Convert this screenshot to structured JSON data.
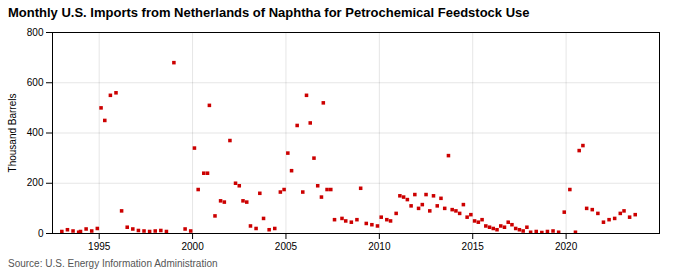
{
  "chart_data": {
    "type": "scatter",
    "title": "Monthly U.S. Imports from Netherlands of Naphtha for Petrochemical Feedstock Use",
    "ylabel": "Thousand Barrels",
    "source": "Source: U.S. Energy Information Administration",
    "color": "#cc0000",
    "marker": "square",
    "grid": true,
    "xlim": [
      1992.5,
      2025.0
    ],
    "ylim": [
      0,
      800
    ],
    "xticks": [
      1995,
      2000,
      2005,
      2010,
      2015,
      2020
    ],
    "yticks": [
      0,
      200,
      400,
      600,
      800
    ],
    "x": [
      1993.0,
      1993.3,
      1993.6,
      1993.9,
      1994.0,
      1994.3,
      1994.6,
      1994.9,
      1995.1,
      1995.3,
      1995.6,
      1995.9,
      1996.2,
      1996.5,
      1996.8,
      1997.1,
      1997.4,
      1997.7,
      1998.0,
      1998.3,
      1998.6,
      1999.0,
      1999.6,
      1999.9,
      2000.1,
      2000.3,
      2000.6,
      2000.8,
      2000.9,
      2001.2,
      2001.5,
      2001.7,
      2002.0,
      2002.3,
      2002.5,
      2002.7,
      2002.9,
      2003.1,
      2003.4,
      2003.6,
      2003.8,
      2004.1,
      2004.4,
      2004.7,
      2004.9,
      2005.1,
      2005.3,
      2005.6,
      2005.9,
      2006.1,
      2006.3,
      2006.5,
      2006.7,
      2006.9,
      2007.0,
      2007.2,
      2007.4,
      2007.6,
      2008.0,
      2008.2,
      2008.5,
      2008.8,
      2009.0,
      2009.3,
      2009.6,
      2009.9,
      2010.1,
      2010.4,
      2010.6,
      2010.9,
      2011.1,
      2011.3,
      2011.5,
      2011.7,
      2011.9,
      2012.1,
      2012.3,
      2012.5,
      2012.7,
      2012.9,
      2013.1,
      2013.3,
      2013.5,
      2013.7,
      2013.9,
      2014.1,
      2014.3,
      2014.5,
      2014.7,
      2014.9,
      2015.1,
      2015.3,
      2015.5,
      2015.7,
      2015.9,
      2016.1,
      2016.3,
      2016.5,
      2016.7,
      2016.9,
      2017.1,
      2017.3,
      2017.5,
      2017.7,
      2017.9,
      2018.1,
      2018.4,
      2018.7,
      2019.0,
      2019.3,
      2019.6,
      2019.9,
      2020.2,
      2020.5,
      2020.7,
      2020.9,
      2021.1,
      2021.4,
      2021.7,
      2022.0,
      2022.3,
      2022.6,
      2022.9,
      2023.1,
      2023.4,
      2023.7
    ],
    "values": [
      8,
      15,
      10,
      5,
      8,
      18,
      10,
      20,
      500,
      450,
      550,
      560,
      90,
      25,
      18,
      12,
      10,
      8,
      10,
      12,
      8,
      680,
      18,
      10,
      340,
      175,
      240,
      240,
      510,
      70,
      130,
      125,
      370,
      200,
      190,
      130,
      125,
      30,
      20,
      160,
      60,
      15,
      20,
      165,
      175,
      320,
      250,
      430,
      165,
      550,
      440,
      300,
      190,
      145,
      520,
      175,
      175,
      55,
      60,
      50,
      45,
      55,
      180,
      40,
      35,
      30,
      65,
      55,
      50,
      80,
      150,
      145,
      135,
      110,
      155,
      100,
      115,
      155,
      90,
      150,
      110,
      140,
      100,
      310,
      95,
      90,
      80,
      115,
      65,
      75,
      50,
      45,
      55,
      30,
      25,
      20,
      15,
      30,
      25,
      45,
      35,
      20,
      15,
      10,
      25,
      5,
      8,
      4,
      8,
      10,
      5,
      85,
      175,
      5,
      330,
      350,
      100,
      95,
      80,
      45,
      55,
      60,
      80,
      90,
      65,
      75
    ]
  }
}
